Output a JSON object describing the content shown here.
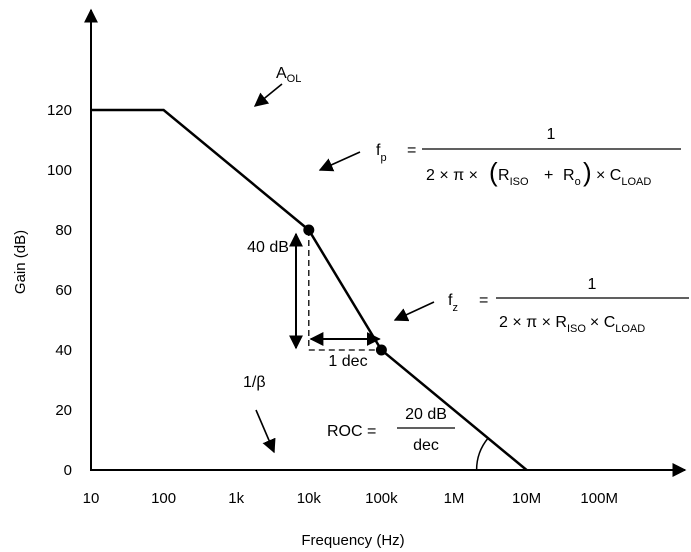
{
  "chart_data": {
    "type": "line",
    "title": "",
    "xlabel": "Frequency (Hz)",
    "ylabel": "Gain (dB)",
    "xscale": "log",
    "xlim": [
      10,
      1000000000
    ],
    "ylim": [
      0,
      120
    ],
    "x_ticks": [
      {
        "value": 10,
        "label": "10"
      },
      {
        "value": 100,
        "label": "100"
      },
      {
        "value": 1000,
        "label": "1k"
      },
      {
        "value": 10000,
        "label": "10k"
      },
      {
        "value": 100000,
        "label": "100k"
      },
      {
        "value": 1000000,
        "label": "1M"
      },
      {
        "value": 10000000,
        "label": "10M"
      },
      {
        "value": 100000000,
        "label": "100M"
      }
    ],
    "y_ticks": [
      0,
      20,
      40,
      60,
      80,
      100,
      120
    ],
    "grid": false,
    "series": [
      {
        "name": "A_OL",
        "x": [
          10,
          100,
          10000,
          100000,
          10000000
        ],
        "y": [
          120,
          120,
          80,
          40,
          0
        ]
      }
    ],
    "points": [
      {
        "label": "f_p",
        "x": 10000,
        "y": 80
      },
      {
        "label": "f_z",
        "x": 100000,
        "y": 40
      }
    ],
    "annotations": {
      "aol": {
        "main": "A",
        "sub": "OL"
      },
      "beta": "1/β",
      "fp": {
        "sym": "f",
        "sub": "p",
        "eq": "=",
        "num": "1",
        "den_prefix": "2 × π × ",
        "r_iso": "R",
        "r_iso_sub": "ISO",
        "plus": "+",
        "r_o": "R",
        "r_o_sub": "o",
        "times_c": "× C",
        "c_sub": "LOAD"
      },
      "fz": {
        "sym": "f",
        "sub": "z",
        "eq": "=",
        "num": "1",
        "den_prefix": "2 × π × R",
        "r_iso_sub": "ISO",
        "times_c": "× C",
        "c_sub": "LOAD"
      },
      "delta_gain": "40 dB",
      "delta_freq": "1 dec",
      "roc": {
        "label": "ROC =",
        "num": "20 dB",
        "den": "dec"
      }
    }
  }
}
